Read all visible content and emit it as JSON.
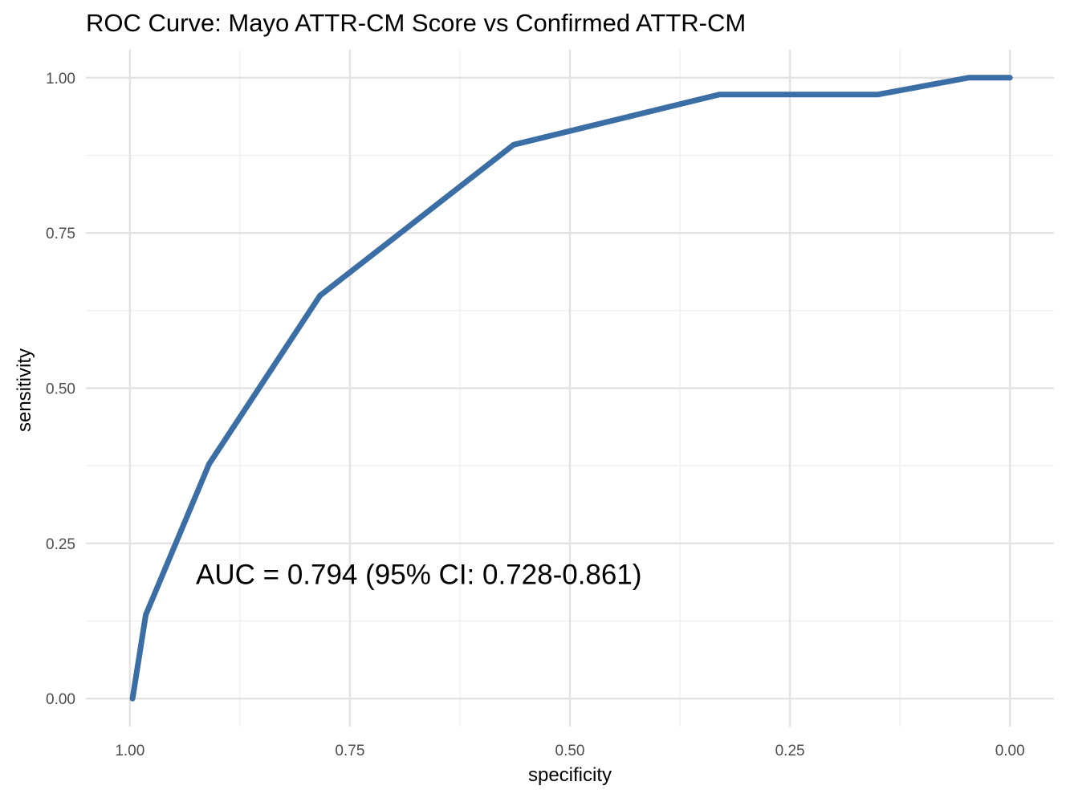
{
  "chart_data": {
    "type": "line",
    "title": "ROC Curve: Mayo ATTR-CM Score vs Confirmed ATTR-CM",
    "xlabel": "specificity",
    "ylabel": "sensitivity",
    "x_reversed": true,
    "xlim": [
      1.05,
      -0.05
    ],
    "ylim": [
      -0.045,
      1.045
    ],
    "x_ticks": [
      1.0,
      0.75,
      0.5,
      0.25,
      0.0
    ],
    "x_tick_labels": [
      "1.00",
      "0.75",
      "0.50",
      "0.25",
      "0.00"
    ],
    "y_ticks": [
      0.0,
      0.25,
      0.5,
      0.75,
      1.0
    ],
    "y_tick_labels": [
      "0.00",
      "0.25",
      "0.50",
      "0.75",
      "1.00"
    ],
    "x_minor_ticks": [
      0.875,
      0.625,
      0.375,
      0.125
    ],
    "y_minor_ticks": [
      0.125,
      0.375,
      0.625,
      0.875
    ],
    "grid": true,
    "line_color": "#3a6ea5",
    "annotation": {
      "text": "AUC = 0.794 (95% CI: 0.728-0.861)",
      "x": 0.925,
      "y": 0.2
    },
    "series": [
      {
        "x": [
          0.997,
          0.982,
          0.91,
          0.784,
          0.564,
          0.33,
          0.15,
          0.047,
          0.0
        ],
        "y": [
          0.0,
          0.135,
          0.378,
          0.649,
          0.892,
          0.973,
          0.973,
          1.0,
          1.0
        ]
      }
    ]
  }
}
